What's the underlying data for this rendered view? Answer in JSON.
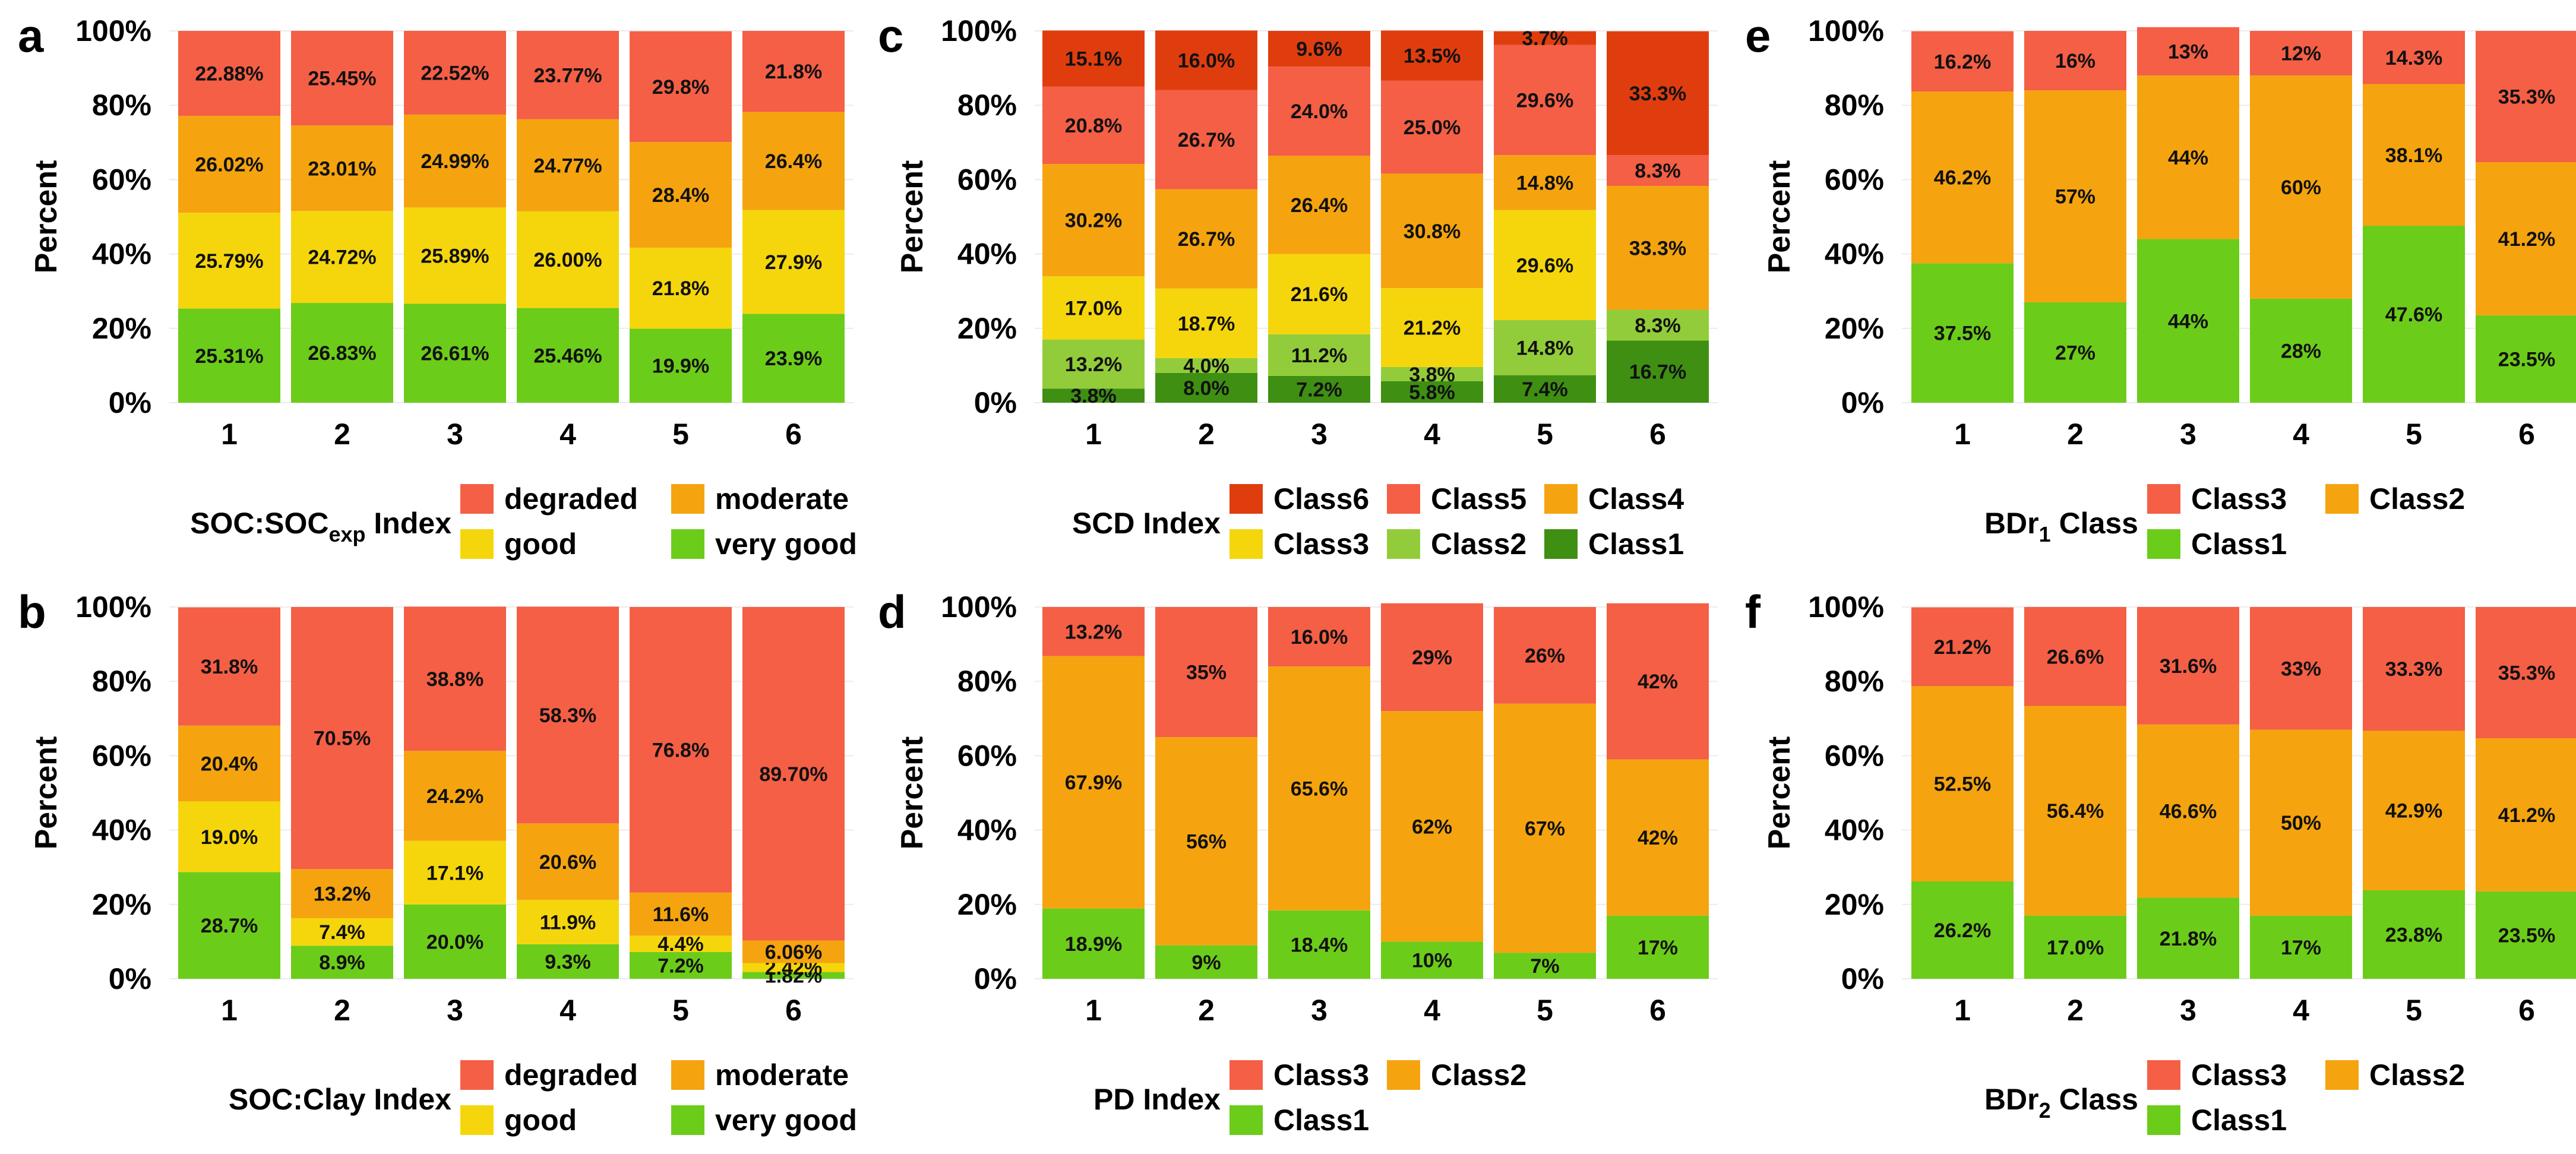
{
  "chart_data": [
    {
      "panel": "a",
      "type": "bar",
      "stacked": true,
      "ylabel": "Percent",
      "ylim": [
        0,
        100
      ],
      "yticks": [
        "0%",
        "20%",
        "40%",
        "60%",
        "80%",
        "100%"
      ],
      "categories": [
        "1",
        "2",
        "3",
        "4",
        "5",
        "6"
      ],
      "legend_title": "SOC:SOCexp Index",
      "legend_title_main": "SOC:SOC",
      "legend_title_sub": "exp",
      "legend_title_suffix": " Index",
      "legend_items": [
        "degraded",
        "moderate",
        "good",
        "very good"
      ],
      "series": [
        {
          "name": "very good",
          "color": "#6ccc1a",
          "values": [
            25.31,
            26.83,
            26.61,
            25.46,
            19.9,
            23.9
          ],
          "labels": [
            "25.31%",
            "26.83%",
            "26.61%",
            "25.46%",
            "19.9%",
            "23.9%"
          ]
        },
        {
          "name": "good",
          "color": "#f5d60c",
          "values": [
            25.79,
            24.72,
            25.89,
            26.0,
            21.8,
            27.9
          ],
          "labels": [
            "25.79%",
            "24.72%",
            "25.89%",
            "26.00%",
            "21.8%",
            "27.9%"
          ]
        },
        {
          "name": "moderate",
          "color": "#f5a40f",
          "values": [
            26.02,
            23.01,
            24.99,
            24.77,
            28.4,
            26.4
          ],
          "labels": [
            "26.02%",
            "23.01%",
            "24.99%",
            "24.77%",
            "28.4%",
            "26.4%"
          ]
        },
        {
          "name": "degraded",
          "color": "#f45f45",
          "values": [
            22.88,
            25.45,
            22.52,
            23.77,
            29.8,
            21.8
          ],
          "labels": [
            "22.88%",
            "25.45%",
            "22.52%",
            "23.77%",
            "29.8%",
            "21.8%"
          ]
        }
      ]
    },
    {
      "panel": "b",
      "type": "bar",
      "stacked": true,
      "ylabel": "Percent",
      "ylim": [
        0,
        100
      ],
      "yticks": [
        "0%",
        "20%",
        "40%",
        "60%",
        "80%",
        "100%"
      ],
      "categories": [
        "1",
        "2",
        "3",
        "4",
        "5",
        "6"
      ],
      "legend_title": "SOC:Clay Index",
      "legend_items": [
        "degraded",
        "moderate",
        "good",
        "very good"
      ],
      "series": [
        {
          "name": "very good",
          "color": "#6ccc1a",
          "values": [
            28.7,
            8.9,
            20.0,
            9.3,
            7.2,
            1.82
          ],
          "labels": [
            "28.7%",
            "8.9%",
            "20.0%",
            "9.3%",
            "7.2%",
            "1.82%"
          ]
        },
        {
          "name": "good",
          "color": "#f5d60c",
          "values": [
            19.0,
            7.4,
            17.1,
            11.9,
            4.4,
            2.42
          ],
          "labels": [
            "19.0%",
            "7.4%",
            "17.1%",
            "11.9%",
            "4.4%",
            "2.42%"
          ]
        },
        {
          "name": "moderate",
          "color": "#f5a40f",
          "values": [
            20.4,
            13.2,
            24.2,
            20.6,
            11.6,
            6.06
          ],
          "labels": [
            "20.4%",
            "13.2%",
            "24.2%",
            "20.6%",
            "11.6%",
            "6.06%"
          ]
        },
        {
          "name": "degraded",
          "color": "#f45f45",
          "values": [
            31.8,
            70.5,
            38.8,
            58.3,
            76.8,
            89.7
          ],
          "labels": [
            "31.8%",
            "70.5%",
            "38.8%",
            "58.3%",
            "76.8%",
            "89.70%"
          ]
        }
      ]
    },
    {
      "panel": "c",
      "type": "bar",
      "stacked": true,
      "ylabel": "Percent",
      "ylim": [
        0,
        100
      ],
      "yticks": [
        "0%",
        "20%",
        "40%",
        "60%",
        "80%",
        "100%"
      ],
      "categories": [
        "1",
        "2",
        "3",
        "4",
        "5",
        "6"
      ],
      "legend_title": "SCD Index",
      "legend_items": [
        "Class6",
        "Class5",
        "Class4",
        "Class3",
        "Class2",
        "Class1"
      ],
      "series": [
        {
          "name": "Class1",
          "color": "#3f8f12",
          "values": [
            3.8,
            8.0,
            7.2,
            5.8,
            7.4,
            16.7
          ],
          "labels": [
            "3.8%",
            "8.0%",
            "7.2%",
            "5.8%",
            "7.4%",
            "16.7%"
          ]
        },
        {
          "name": "Class2",
          "color": "#93cc3a",
          "values": [
            13.2,
            4.0,
            11.2,
            3.8,
            14.8,
            8.3
          ],
          "labels": [
            "13.2%",
            "4.0%",
            "11.2%",
            "3.8%",
            "14.8%",
            "8.3%"
          ]
        },
        {
          "name": "Class3",
          "color": "#f5d60c",
          "values": [
            17.0,
            18.7,
            21.6,
            21.2,
            29.6,
            0
          ],
          "labels": [
            "17.0%",
            "18.7%",
            "21.6%",
            "21.2%",
            "29.6%",
            ""
          ]
        },
        {
          "name": "Class4",
          "color": "#f5a40f",
          "values": [
            30.2,
            26.7,
            26.4,
            30.8,
            14.8,
            33.3
          ],
          "labels": [
            "30.2%",
            "26.7%",
            "26.4%",
            "30.8%",
            "14.8%",
            "33.3%"
          ]
        },
        {
          "name": "Class5",
          "color": "#f45f45",
          "values": [
            20.8,
            26.7,
            24.0,
            25.0,
            29.6,
            8.3
          ],
          "labels": [
            "20.8%",
            "26.7%",
            "24.0%",
            "25.0%",
            "29.6%",
            "8.3%"
          ]
        },
        {
          "name": "Class6",
          "color": "#e03d0f",
          "values": [
            15.1,
            16.0,
            9.6,
            13.5,
            3.7,
            33.3
          ],
          "labels": [
            "15.1%",
            "16.0%",
            "9.6%",
            "13.5%",
            "3.7%",
            "33.3%"
          ]
        }
      ]
    },
    {
      "panel": "d",
      "type": "bar",
      "stacked": true,
      "ylabel": "Percent",
      "ylim": [
        0,
        100
      ],
      "yticks": [
        "0%",
        "20%",
        "40%",
        "60%",
        "80%",
        "100%"
      ],
      "categories": [
        "1",
        "2",
        "3",
        "4",
        "5",
        "6"
      ],
      "legend_title": "PD Index",
      "legend_items": [
        "Class3",
        "Class2",
        "Class1"
      ],
      "series": [
        {
          "name": "Class1",
          "color": "#6ccc1a",
          "values": [
            18.9,
            9,
            18.4,
            10,
            7,
            17
          ],
          "labels": [
            "18.9%",
            "9%",
            "18.4%",
            "10%",
            "7%",
            "17%"
          ]
        },
        {
          "name": "Class2",
          "color": "#f5a40f",
          "values": [
            67.9,
            56,
            65.6,
            62,
            67,
            42
          ],
          "labels": [
            "67.9%",
            "56%",
            "65.6%",
            "62%",
            "67%",
            "42%"
          ]
        },
        {
          "name": "Class3",
          "color": "#f45f45",
          "values": [
            13.2,
            35,
            16.0,
            29,
            26,
            42
          ],
          "labels": [
            "13.2%",
            "35%",
            "16.0%",
            "29%",
            "26%",
            "42%"
          ]
        }
      ]
    },
    {
      "panel": "e",
      "type": "bar",
      "stacked": true,
      "ylabel": "Percent",
      "ylim": [
        0,
        100
      ],
      "yticks": [
        "0%",
        "20%",
        "40%",
        "60%",
        "80%",
        "100%"
      ],
      "categories": [
        "1",
        "2",
        "3",
        "4",
        "5",
        "6"
      ],
      "legend_title": "BDr1 Class",
      "legend_title_main": "BDr",
      "legend_title_sub": "1",
      "legend_title_suffix": " Class",
      "legend_items": [
        "Class3",
        "Class2",
        "Class1"
      ],
      "series": [
        {
          "name": "Class1",
          "color": "#6ccc1a",
          "values": [
            37.5,
            27,
            44,
            28,
            47.6,
            23.5
          ],
          "labels": [
            "37.5%",
            "27%",
            "44%",
            "28%",
            "47.6%",
            "23.5%"
          ]
        },
        {
          "name": "Class2",
          "color": "#f5a40f",
          "values": [
            46.2,
            57,
            44,
            60,
            38.1,
            41.2
          ],
          "labels": [
            "46.2%",
            "57%",
            "44%",
            "60%",
            "38.1%",
            "41.2%"
          ]
        },
        {
          "name": "Class3",
          "color": "#f45f45",
          "values": [
            16.2,
            16,
            13,
            12,
            14.3,
            35.3
          ],
          "labels": [
            "16.2%",
            "16%",
            "13%",
            "12%",
            "14.3%",
            "35.3%"
          ]
        }
      ]
    },
    {
      "panel": "f",
      "type": "bar",
      "stacked": true,
      "ylabel": "Percent",
      "ylim": [
        0,
        100
      ],
      "yticks": [
        "0%",
        "20%",
        "40%",
        "60%",
        "80%",
        "100%"
      ],
      "categories": [
        "1",
        "2",
        "3",
        "4",
        "5",
        "6"
      ],
      "legend_title": "BDr2 Class",
      "legend_title_main": "BDr",
      "legend_title_sub": "2",
      "legend_title_suffix": " Class",
      "legend_items": [
        "Class3",
        "Class2",
        "Class1"
      ],
      "series": [
        {
          "name": "Class1",
          "color": "#6ccc1a",
          "values": [
            26.2,
            17.0,
            21.8,
            17,
            23.8,
            23.5
          ],
          "labels": [
            "26.2%",
            "17.0%",
            "21.8%",
            "17%",
            "23.8%",
            "23.5%"
          ]
        },
        {
          "name": "Class2",
          "color": "#f5a40f",
          "values": [
            52.5,
            56.4,
            46.6,
            50,
            42.9,
            41.2
          ],
          "labels": [
            "52.5%",
            "56.4%",
            "46.6%",
            "50%",
            "42.9%",
            "41.2%"
          ]
        },
        {
          "name": "Class3",
          "color": "#f45f45",
          "values": [
            21.2,
            26.6,
            31.6,
            33,
            33.3,
            35.3
          ],
          "labels": [
            "21.2%",
            "26.6%",
            "31.6%",
            "33%",
            "33.3%",
            "35.3%"
          ]
        }
      ]
    }
  ]
}
